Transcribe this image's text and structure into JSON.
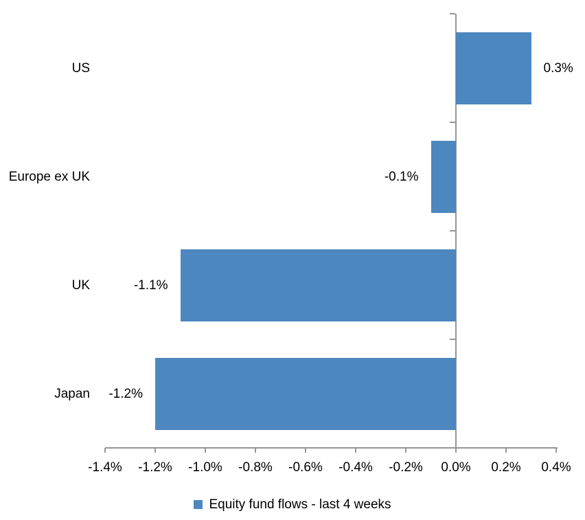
{
  "chart_data": {
    "type": "bar",
    "orientation": "horizontal",
    "title": "",
    "xlabel": "",
    "ylabel": "",
    "grid": false,
    "legend_position": "bottom",
    "categories": [
      "US",
      "Europe ex UK",
      "UK",
      "Japan"
    ],
    "series": [
      {
        "name": "Equity fund flows - last 4 weeks",
        "values": [
          0.3,
          -0.1,
          -1.1,
          -1.2
        ],
        "data_labels": [
          "0.3%",
          "-0.1%",
          "-1.1%",
          "-1.2%"
        ]
      }
    ],
    "x_axis": {
      "min": -1.4,
      "max": 0.4,
      "step": 0.2,
      "tick_values": [
        -1.4,
        -1.2,
        -1.0,
        -0.8,
        -0.6,
        -0.4,
        -0.2,
        0.0,
        0.2,
        0.4
      ],
      "tick_labels": [
        "-1.4%",
        "-1.2%",
        "-1.0%",
        "-0.8%",
        "-0.6%",
        "-0.4%",
        "-0.2%",
        "0.0%",
        "0.2%",
        "0.4%"
      ]
    },
    "legend": {
      "label": "Equity fund flows - last 4 weeks"
    },
    "colors": {
      "bar": "#4d87bf",
      "axis": "#969696",
      "text": "#000000",
      "background": "#ffffff"
    }
  }
}
